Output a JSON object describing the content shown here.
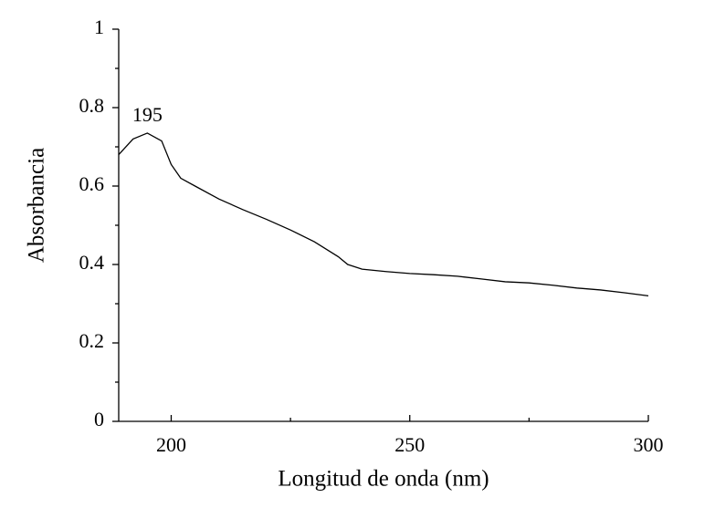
{
  "chart_data": {
    "type": "line",
    "xlabel": "Longitud de onda (nm)",
    "ylabel": "Absorbancia",
    "x": [
      189,
      192,
      195,
      198,
      200,
      202,
      205,
      210,
      215,
      220,
      225,
      230,
      235,
      237,
      240,
      245,
      250,
      255,
      260,
      265,
      270,
      275,
      280,
      285,
      290,
      295,
      300
    ],
    "values": [
      0.68,
      0.72,
      0.735,
      0.715,
      0.655,
      0.62,
      0.6,
      0.567,
      0.54,
      0.515,
      0.488,
      0.458,
      0.42,
      0.4,
      0.388,
      0.382,
      0.377,
      0.374,
      0.37,
      0.363,
      0.356,
      0.353,
      0.347,
      0.34,
      0.335,
      0.328,
      0.32
    ],
    "color": "#000000",
    "xlim": [
      189,
      300
    ],
    "xticks": [
      200,
      250,
      300
    ],
    "xminorticks": [
      225,
      275
    ],
    "ylim": [
      0,
      1
    ],
    "yticks": [
      0,
      0.2,
      0.4,
      0.6,
      0.8,
      1
    ],
    "yminorticks": [
      0.1,
      0.3,
      0.5,
      0.7,
      0.9
    ],
    "annotations": [
      {
        "text": "195",
        "x": 195,
        "y": 0.735
      }
    ]
  }
}
